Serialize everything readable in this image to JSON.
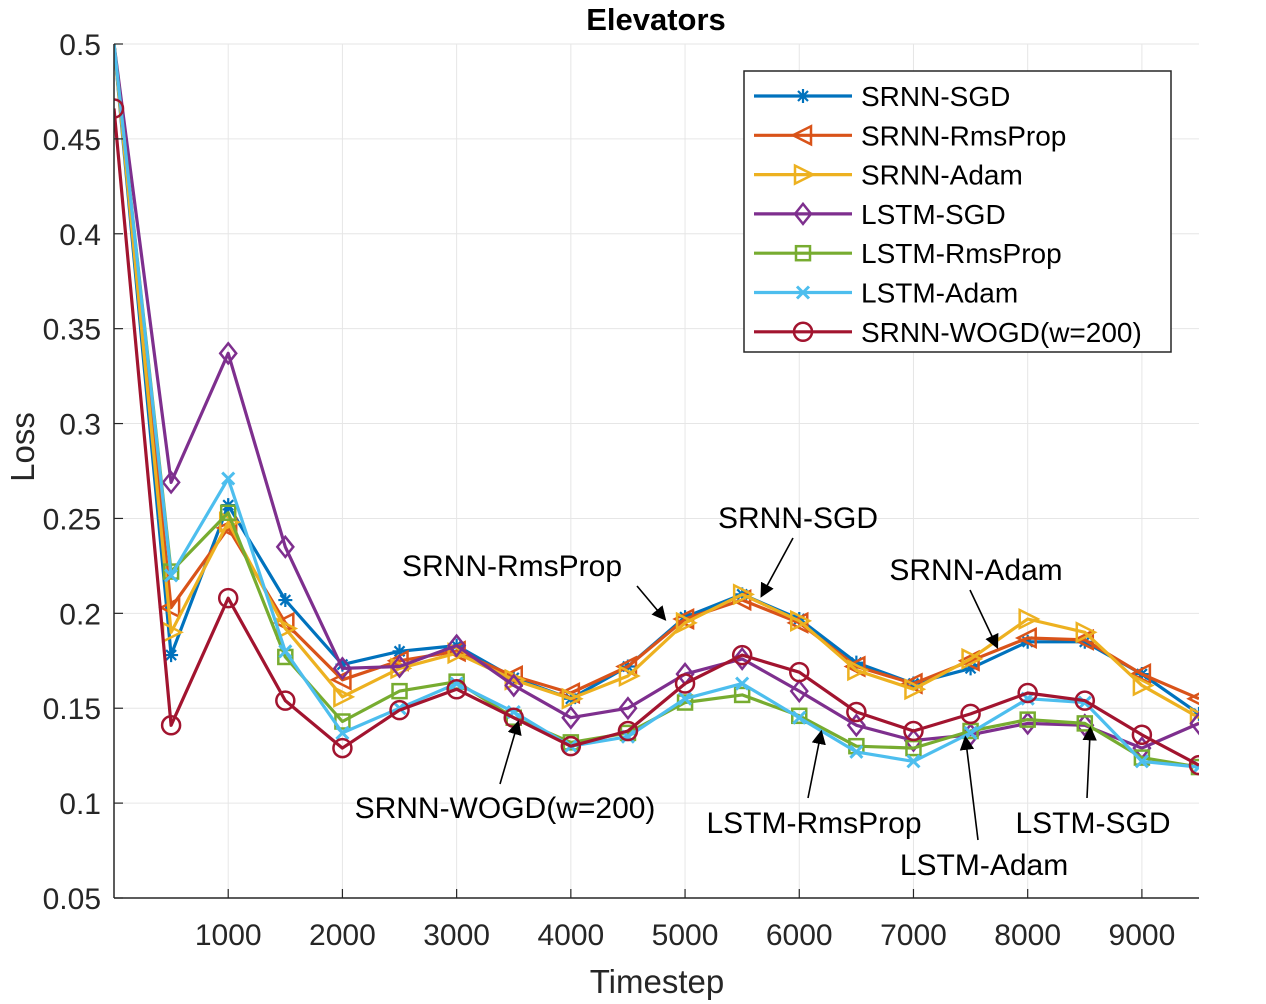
{
  "chart_data": {
    "type": "line",
    "title": "Elevators",
    "xlabel": "Timestep",
    "ylabel": "Loss",
    "xlim": [
      0,
      9500
    ],
    "ylim": [
      0.05,
      0.5
    ],
    "xticks": [
      1000,
      2000,
      3000,
      4000,
      5000,
      6000,
      7000,
      8000,
      9000
    ],
    "xtick_labels": [
      "1000",
      "2000",
      "3000",
      "4000",
      "5000",
      "6000",
      "7000",
      "8000",
      "9000"
    ],
    "yticks": [
      0.05,
      0.1,
      0.15,
      0.2,
      0.25,
      0.3,
      0.35,
      0.4,
      0.45,
      0.5
    ],
    "ytick_labels": [
      "0.05",
      "0.1",
      "0.15",
      "0.2",
      "0.25",
      "0.3",
      "0.35",
      "0.4",
      "0.45",
      "0.5"
    ],
    "grid": true,
    "legend_position": "top-right",
    "x": [
      0,
      500,
      1000,
      1500,
      2000,
      2500,
      3000,
      3500,
      4000,
      4500,
      5000,
      5500,
      6000,
      6500,
      7000,
      7500,
      8000,
      8500,
      9000,
      9500
    ],
    "series": [
      {
        "name": "SRNN-SGD",
        "color": "#0072BD",
        "marker": "asterisk",
        "values": [
          0.5,
          0.178,
          0.257,
          0.207,
          0.173,
          0.18,
          0.183,
          0.166,
          0.155,
          0.172,
          0.198,
          0.21,
          0.197,
          0.174,
          0.163,
          0.171,
          0.185,
          0.185,
          0.168,
          0.147
        ]
      },
      {
        "name": "SRNN-RmsProp",
        "color": "#D95319",
        "marker": "triangle-left",
        "values": [
          0.5,
          0.203,
          0.245,
          0.195,
          0.165,
          0.175,
          0.18,
          0.167,
          0.158,
          0.172,
          0.197,
          0.207,
          0.195,
          0.172,
          0.163,
          0.175,
          0.187,
          0.186,
          0.168,
          0.155
        ]
      },
      {
        "name": "SRNN-Adam",
        "color": "#EDB120",
        "marker": "triangle-right",
        "values": [
          0.5,
          0.19,
          0.248,
          0.192,
          0.156,
          0.171,
          0.179,
          0.165,
          0.155,
          0.167,
          0.195,
          0.21,
          0.196,
          0.17,
          0.16,
          0.176,
          0.197,
          0.19,
          0.162,
          0.145
        ]
      },
      {
        "name": "LSTM-SGD",
        "color": "#7E2F8E",
        "marker": "diamond",
        "values": [
          0.5,
          0.269,
          0.337,
          0.235,
          0.171,
          0.172,
          0.183,
          0.162,
          0.145,
          0.15,
          0.168,
          0.176,
          0.159,
          0.141,
          0.133,
          0.136,
          0.142,
          0.141,
          0.129,
          0.142
        ]
      },
      {
        "name": "LSTM-RmsProp",
        "color": "#77AC30",
        "marker": "square",
        "values": [
          0.5,
          0.222,
          0.253,
          0.177,
          0.143,
          0.159,
          0.164,
          0.145,
          0.132,
          0.137,
          0.153,
          0.157,
          0.146,
          0.13,
          0.129,
          0.138,
          0.144,
          0.142,
          0.124,
          0.119
        ]
      },
      {
        "name": "LSTM-Adam",
        "color": "#4DBEEE",
        "marker": "x",
        "values": [
          0.5,
          0.22,
          0.271,
          0.18,
          0.137,
          0.15,
          0.163,
          0.148,
          0.13,
          0.135,
          0.155,
          0.163,
          0.145,
          0.127,
          0.122,
          0.137,
          0.155,
          0.153,
          0.122,
          0.119
        ]
      },
      {
        "name": "SRNN-WOGD(w=200)",
        "color": "#A2142F",
        "marker": "circle",
        "values": [
          0.466,
          0.141,
          0.208,
          0.154,
          0.129,
          0.149,
          0.16,
          0.145,
          0.13,
          0.138,
          0.163,
          0.178,
          0.169,
          0.148,
          0.138,
          0.147,
          0.158,
          0.154,
          0.136,
          0.12
        ]
      }
    ],
    "annotations": [
      {
        "text": "SRNN-RmsProp",
        "points_to": [
          4850,
          0.195
        ]
      },
      {
        "text": "SRNN-SGD",
        "points_to": [
          5650,
          0.207
        ]
      },
      {
        "text": "SRNN-Adam",
        "points_to": [
          7750,
          0.18
        ]
      },
      {
        "text": "SRNN-WOGD(w=200)",
        "points_to": [
          3550,
          0.145
        ]
      },
      {
        "text": "LSTM-RmsProp",
        "points_to": [
          6200,
          0.14
        ]
      },
      {
        "text": "LSTM-Adam",
        "points_to": [
          7450,
          0.137
        ]
      },
      {
        "text": "LSTM-SGD",
        "points_to": [
          8550,
          0.142
        ]
      }
    ]
  }
}
